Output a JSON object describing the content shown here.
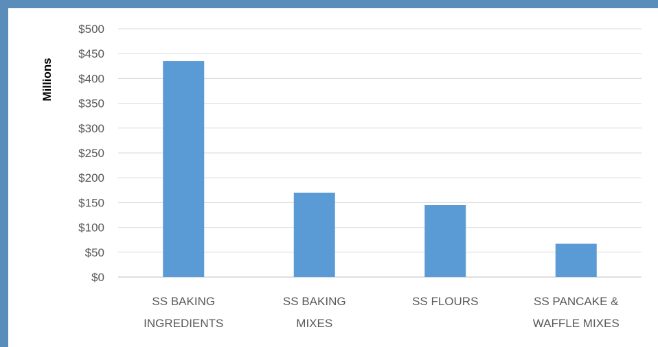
{
  "chart_data": {
    "type": "bar",
    "categories": [
      [
        "SS BAKING",
        "INGREDIENTS"
      ],
      [
        "SS BAKING",
        "MIXES"
      ],
      [
        "SS FLOURS"
      ],
      [
        "SS PANCAKE &",
        "WAFFLE MIXES"
      ]
    ],
    "values": [
      435,
      170,
      145,
      67
    ],
    "ylabel": "Millions",
    "ylim": [
      0,
      500
    ],
    "yticks": [
      0,
      50,
      100,
      150,
      200,
      250,
      300,
      350,
      400,
      450,
      500
    ],
    "ytick_labels": [
      "$0",
      "$50",
      "$100",
      "$150",
      "$200",
      "$250",
      "$300",
      "$350",
      "$400",
      "$450",
      "$500"
    ],
    "grid": true,
    "legend": "none",
    "bar_color": "#5b9bd5"
  }
}
